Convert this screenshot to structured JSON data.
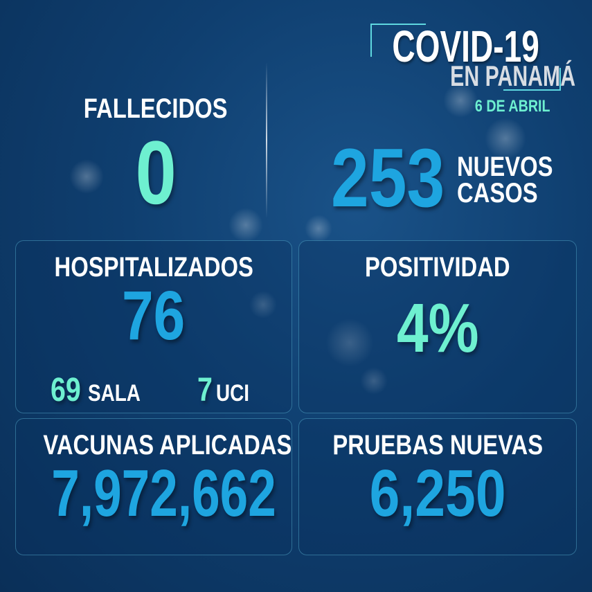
{
  "header": {
    "title": "COVID-19",
    "subtitle": "EN PANAMÁ",
    "date": "6 DE ABRIL"
  },
  "fallecidos": {
    "label": "FALLECIDOS",
    "value": "0"
  },
  "nuevos_casos": {
    "value": "253",
    "label_line1": "NUEVOS",
    "label_line2": "CASOS"
  },
  "hospitalizados": {
    "label": "HOSPITALIZADOS",
    "value": "76",
    "sala_value": "69",
    "sala_label": "SALA",
    "uci_value": "7",
    "uci_label": "UCI"
  },
  "positividad": {
    "label": "POSITIVIDAD",
    "value": "4%"
  },
  "vacunas": {
    "label": "VACUNAS APLICADAS",
    "value": "7,972,662"
  },
  "pruebas": {
    "label": "PRUEBAS NUEVAS",
    "value": "6,250"
  },
  "colors": {
    "background": "#0f3f70",
    "blue": "#1ea5e0",
    "green": "#6ef0d0",
    "accent_line": "#5fd8e0"
  }
}
